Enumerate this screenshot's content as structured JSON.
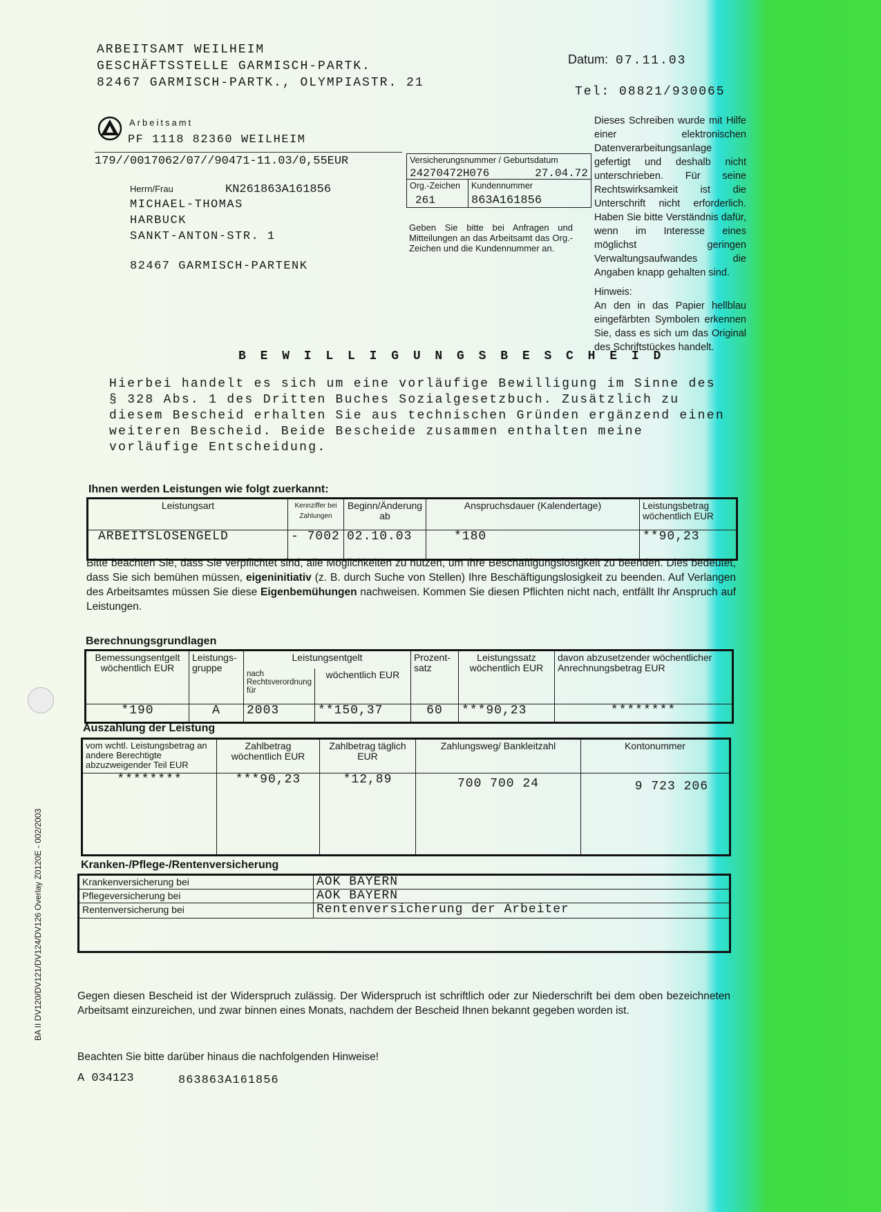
{
  "sender": {
    "lines": [
      "ARBEITSAMT WEILHEIM",
      "GESCHÄFTSSTELLE GARMISCH-PARTK.",
      "82467 GARMISCH-PARTK., OLYMPIASTR. 21"
    ],
    "date_label": "Datum:",
    "date": "07.11.03",
    "tel_label": "Tel:",
    "tel": "08821/930065"
  },
  "address_window": {
    "logo_text": "Arbeitsamt",
    "return_address": "PF 1118  82360 WEILHEIM",
    "postage_ref": "179//0017062/07//90471-11.03/0,55EUR",
    "salutation": "Herrn/Frau",
    "customer_code": "KN261863A161856",
    "recipient": [
      "MICHAEL-THOMAS",
      "HARBUCK",
      "SANKT-ANTON-STR. 1"
    ],
    "city": "82467 GARMISCH-PARTENK"
  },
  "id_box": {
    "insurance_label": "Versicherungsnummer / Geburtsdatum",
    "insurance_number": "24270472H076",
    "birth_date": "27.04.72",
    "org_label": "Org.-Zeichen",
    "org_value": "261",
    "customer_label": "Kundennummer",
    "customer_value": "863A161856",
    "note": "Geben Sie bitte bei Anfragen und Mitteilungen an das Arbeitsamt das Org.-Zeichen und die Kundennummer an."
  },
  "side_note": {
    "text": "Dieses Schreiben wurde mit Hilfe einer elektronischen Datenverarbeitungsanlage gefertigt und deshalb nicht unterschrieben. Für seine Rechtswirksamkeit ist die Unterschrift nicht erforderlich. Haben Sie bitte Verständnis dafür, wenn im Interesse eines möglichst geringen Verwaltungsaufwandes die Angaben knapp gehalten sind.",
    "hint_label": "Hinweis:",
    "hint": "An den in das Papier hellblau eingefärbten Symbolen erkennen Sie, dass es sich um das Original des Schriftstückes handelt."
  },
  "title": "B E W I L L I G U N G S B E S C H E I D",
  "intro": "Hierbei handelt es sich um eine vorläufige Bewilligung im Sinne des § 328 Abs. 1 des Dritten Buches Sozialgesetzbuch. Zusätzlich zu diesem Bescheid erhalten Sie aus technischen Gründen ergänzend einen weiteren Bescheid. Beide Bescheide zusammen enthalten meine vorläufige Entscheidung.",
  "benefits": {
    "heading": "Ihnen werden Leistungen wie folgt zuerkannt:",
    "headers": [
      "Leistungsart",
      "Kennziffer bei Zahlungen",
      "Beginn/Änderung ab",
      "Anspruchsdauer (Kalendertage)",
      "Leistungsbetrag wöchentlich  EUR"
    ],
    "row": [
      "ARBEITSLOSENGELD",
      "- 7002",
      "02.10.03",
      "*180",
      "**90,23"
    ]
  },
  "obligation": {
    "t1": "Bitte beachten Sie, dass Sie verpflichtet sind, alle Möglichkeiten zu nutzen, um Ihre Beschäftigungslosigkeit zu beenden. Dies bedeutet, dass Sie sich bemühen müssen, ",
    "b1": "eigeninitiativ",
    "t2": " (z. B. durch Suche von Stellen) Ihre Beschäftigungslosigkeit zu beenden. Auf Verlangen des Arbeitsamtes müssen Sie diese ",
    "b2": "Eigenbemühungen",
    "t3": " nachweisen. Kommen Sie diesen Pflichten nicht nach, entfällt Ihr Anspruch auf Leistungen."
  },
  "calc": {
    "heading": "Berechnungsgrundlagen",
    "headers": [
      "Bemessungsentgelt wöchentlich EUR",
      "Leistungs-gruppe",
      "Leistungsentgelt",
      "nach Rechtsverordnung für",
      "wöchentlich EUR",
      "Prozent-satz",
      "Leistungssatz wöchentlich EUR",
      "davon abzusetzender wöchentlicher Anrechnungsbetrag EUR"
    ],
    "row": [
      "*190",
      "A",
      "2003",
      "**150,37",
      "60",
      "***90,23",
      "********"
    ]
  },
  "payout": {
    "heading": "Auszahlung der Leistung",
    "headers": [
      "vom wchtl. Leistungsbetrag an andere Berechtigte abzuzweigender Teil  EUR",
      "Zahlbetrag wöchentlich EUR",
      "Zahlbetrag täglich EUR",
      "Zahlungsweg/ Bankleitzahl",
      "Kontonummer"
    ],
    "row": [
      "********",
      "***90,23",
      "*12,89",
      "700 700 24",
      "9 723 206"
    ]
  },
  "insurance": {
    "heading": "Kranken-/Pflege-/Rentenversicherung",
    "rows": [
      [
        "Krankenversicherung bei",
        "AOK BAYERN"
      ],
      [
        "Pflegeversicherung bei",
        "AOK BAYERN"
      ],
      [
        "Rentenversicherung bei",
        "Rentenversicherung der Arbeiter"
      ]
    ]
  },
  "appeal": "Gegen diesen Bescheid ist der Widerspruch zulässig. Der Widerspruch ist schriftlich oder zur Niederschrift bei dem oben bezeichneten Arbeitsamt einzureichen, und zwar binnen eines Monats, nachdem der Bescheid Ihnen bekannt gegeben worden ist.",
  "notice": "Beachten Sie bitte darüber hinaus die nachfolgenden Hinweise!",
  "footer_code": "A 034123",
  "footer_number": "863863A161856",
  "form_id": "BA II DV120/DV121/DV124/DV126  Overlay Z0120E - 002/2003"
}
